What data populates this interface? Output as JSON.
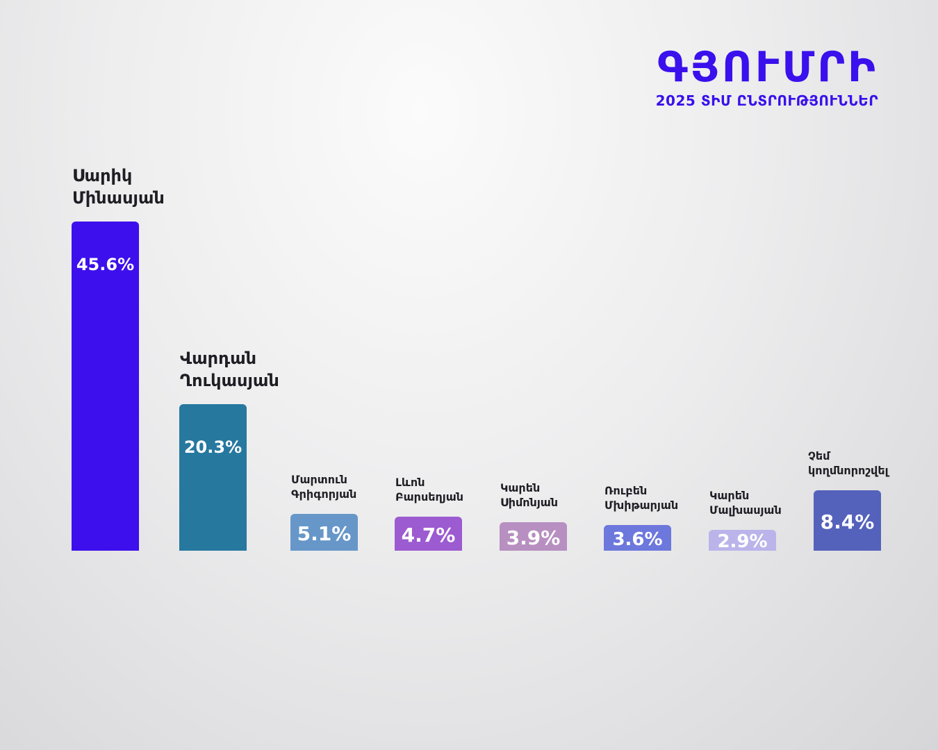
{
  "header": {
    "title": "ԳՅՈՒՄՐԻ",
    "subtitle": "2025 ՏԻՄ ԸՆՏՐՈՒԹՅՈՒՆՆԵՐ"
  },
  "chart_data": {
    "type": "bar",
    "title": "ԳՅՈՒՄՐԻ",
    "subtitle": "2025 ՏԻՄ ԸՆՏՐՈՒԹՅՈՒՆՆԵՐ",
    "categories": [
      "Սարիկ Մինասյան",
      "Վարդան Ղուկասյան",
      "Մարտուն Գրիգորյան",
      "Լևոն Բարսեղյան",
      "Կարեն Սիմոնյան",
      "Ռուբեն Մխիթարյան",
      "Կարեն Մալխասյան",
      "Չեմ կողմնորոշվել"
    ],
    "values": [
      45.6,
      20.3,
      5.1,
      4.7,
      3.9,
      3.6,
      2.9,
      8.4
    ],
    "value_labels": [
      "45.6%",
      "20.3%",
      "5.1%",
      "4.7%",
      "3.9%",
      "3.6%",
      "2.9%",
      "8.4%"
    ],
    "name_lines": [
      [
        "Սարիկ",
        "Մինասյան"
      ],
      [
        "Վարդան",
        "Ղուկասյան"
      ],
      [
        "Մարտուն",
        "Գրիգորյան"
      ],
      [
        "Լևոն",
        "Բարսեղյան"
      ],
      [
        "Կարեն",
        "Սիմոնյան"
      ],
      [
        "Ռուբեն",
        "Մխիթարյան"
      ],
      [
        "Կարեն",
        "Մալխասյան"
      ],
      [
        "Չեմ",
        "կողմնորոշվել"
      ]
    ],
    "colors": [
      "#3d0fec",
      "#26789f",
      "#6797c9",
      "#9c5bd0",
      "#b78fc0",
      "#6d78dd",
      "#bbb4ea",
      "#5462bb"
    ],
    "ylim": [
      0,
      45.6
    ],
    "grid": false,
    "legend": "none"
  }
}
